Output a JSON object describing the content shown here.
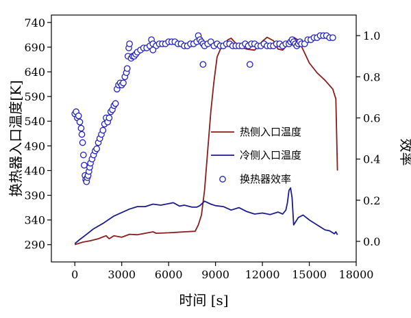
{
  "chart_data": {
    "type": "line",
    "xlabel": "时间 [s]",
    "ylabel_left": "换热器入口温度[K]",
    "ylabel_right": "效率",
    "xlim": [
      -1500,
      18000
    ],
    "ylim_left": [
      255,
      755
    ],
    "ylim_right": [
      -0.1,
      1.1
    ],
    "xticks": [
      0,
      3000,
      6000,
      9000,
      12000,
      15000,
      18000
    ],
    "yticks_left": [
      290,
      340,
      390,
      440,
      490,
      540,
      590,
      640,
      690,
      740
    ],
    "yticks_right": [
      0.0,
      0.2,
      0.4,
      0.6,
      0.8,
      1.0
    ],
    "colors": {
      "hot": "#8b1a1a",
      "cold": "#1a1a8c",
      "efficiency": "#1f1fc8"
    },
    "series": [
      {
        "name": "热侧入口温度",
        "axis": "left",
        "style": "line",
        "color_key": "hot",
        "x": [
          0,
          500,
          1000,
          1500,
          2000,
          2200,
          2500,
          3000,
          3500,
          4000,
          4500,
          5000,
          5200,
          6000,
          7000,
          7700,
          7900,
          8100,
          8300,
          8500,
          8700,
          8900,
          9100,
          9300,
          9500,
          9800,
          10000,
          10300,
          10800,
          11000,
          11500,
          12000,
          12300,
          12700,
          13000,
          13300,
          13700,
          14000,
          14300,
          14600,
          15000,
          15500,
          16000,
          16500,
          16700,
          16800
        ],
        "y": [
          290,
          295,
          298,
          302,
          308,
          302,
          308,
          305,
          311,
          310,
          313,
          316,
          313,
          314,
          316,
          317,
          330,
          350,
          400,
          480,
          560,
          620,
          670,
          685,
          695,
          705,
          708,
          698,
          688,
          686,
          684,
          702,
          710,
          703,
          686,
          684,
          698,
          710,
          704,
          685,
          658,
          638,
          623,
          605,
          585,
          440
        ]
      },
      {
        "name": "冷侧入口温度",
        "axis": "left",
        "style": "line",
        "color_key": "cold",
        "x": [
          0,
          300,
          800,
          1200,
          1800,
          2500,
          3000,
          3500,
          4000,
          4500,
          5000,
          5500,
          6000,
          6300,
          6700,
          7000,
          7500,
          7800,
          8000,
          8300,
          8700,
          9000,
          9500,
          10000,
          10500,
          11000,
          11500,
          12000,
          12500,
          13000,
          13300,
          13500,
          13600,
          13700,
          13800,
          13900,
          14000,
          14300,
          14600,
          15000,
          15500,
          16000,
          16300,
          16600,
          16700,
          16800
        ],
        "y": [
          292,
          300,
          312,
          322,
          333,
          348,
          355,
          362,
          367,
          367,
          372,
          370,
          373,
          375,
          368,
          370,
          366,
          366,
          369,
          378,
          372,
          369,
          367,
          360,
          365,
          357,
          352,
          354,
          351,
          356,
          352,
          360,
          375,
          400,
          405,
          385,
          330,
          345,
          350,
          340,
          330,
          320,
          318,
          312,
          316,
          310
        ]
      },
      {
        "name": "换热器效率",
        "axis": "right",
        "style": "scatter",
        "color_key": "efficiency",
        "x": [
          0,
          80,
          160,
          240,
          320,
          400,
          450,
          500,
          550,
          600,
          650,
          700,
          750,
          800,
          850,
          900,
          950,
          1000,
          1100,
          1200,
          1300,
          1400,
          1500,
          1600,
          1700,
          1800,
          1900,
          2000,
          2100,
          2200,
          2300,
          2400,
          2500,
          2600,
          2700,
          2800,
          2900,
          3000,
          3100,
          3200,
          3300,
          3350,
          3400,
          3450,
          3500,
          3600,
          3700,
          3800,
          3900,
          4000,
          4200,
          4400,
          4600,
          4800,
          4900,
          5000,
          5200,
          5400,
          5600,
          5800,
          6000,
          6200,
          6400,
          6600,
          6800,
          7000,
          7200,
          7400,
          7600,
          7800,
          7900,
          8000,
          8100,
          8200,
          8300,
          8500,
          8700,
          8900,
          9100,
          9300,
          9500,
          9700,
          9900,
          10100,
          10300,
          10500,
          10700,
          10900,
          11100,
          11300,
          11500,
          11700,
          11900,
          12100,
          12300,
          12500,
          12700,
          12900,
          13100,
          13300,
          13500,
          13700,
          13800,
          13900,
          14000,
          14100,
          14200,
          14300,
          14400,
          14500,
          14700,
          14900,
          15100,
          15300,
          15500,
          15700,
          15900,
          16100,
          16300,
          16500,
          11200,
          8200,
          5000
        ],
        "y": [
          0.62,
          0.63,
          0.6,
          0.61,
          0.58,
          0.55,
          0.52,
          0.48,
          0.42,
          0.37,
          0.32,
          0.3,
          0.29,
          0.31,
          0.32,
          0.34,
          0.36,
          0.38,
          0.4,
          0.42,
          0.44,
          0.45,
          0.48,
          0.5,
          0.52,
          0.54,
          0.57,
          0.6,
          0.58,
          0.6,
          0.63,
          0.64,
          0.66,
          0.67,
          0.74,
          0.76,
          0.77,
          0.76,
          0.77,
          0.8,
          0.82,
          0.84,
          0.9,
          0.94,
          0.96,
          0.89,
          0.9,
          0.9,
          0.91,
          0.92,
          0.93,
          0.94,
          0.94,
          0.95,
          0.98,
          0.96,
          0.95,
          0.96,
          0.96,
          0.96,
          0.97,
          0.97,
          0.97,
          0.96,
          0.96,
          0.95,
          0.95,
          0.96,
          0.96,
          0.97,
          1.0,
          0.98,
          0.97,
          0.96,
          0.95,
          0.96,
          0.97,
          0.95,
          0.96,
          0.95,
          0.95,
          0.96,
          0.96,
          0.95,
          0.95,
          0.95,
          0.95,
          0.96,
          0.95,
          0.96,
          0.96,
          0.95,
          0.95,
          0.96,
          0.95,
          0.95,
          0.95,
          0.96,
          0.96,
          0.95,
          0.96,
          0.96,
          0.97,
          0.98,
          0.97,
          0.96,
          0.95,
          0.96,
          0.97,
          0.96,
          0.96,
          0.98,
          0.98,
          0.99,
          0.99,
          1.0,
          1.0,
          1.0,
          0.99,
          0.99,
          0.86,
          0.86,
          0.93
        ]
      }
    ],
    "legend": {
      "position": "center-right",
      "entries": [
        "热侧入口温度",
        "冷侧入口温度",
        "换热器效率"
      ]
    }
  }
}
